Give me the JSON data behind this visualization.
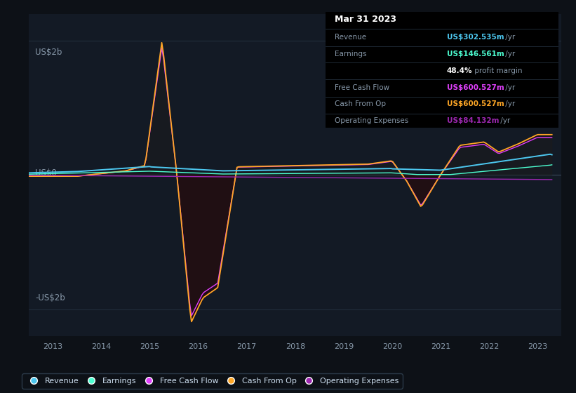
{
  "bg_color": "#0d1117",
  "plot_bg_color": "#131a25",
  "info_box": {
    "date": "Mar 31 2023",
    "rows": [
      {
        "label": "Revenue",
        "value": "US$302.535m",
        "value_color": "#4dc8f0",
        "suffix": " /yr"
      },
      {
        "label": "Earnings",
        "value": "US$146.561m",
        "value_color": "#4dffd2",
        "suffix": " /yr"
      },
      {
        "label": "",
        "value": "48.4%",
        "value_color": "#ffffff",
        "suffix": " profit margin"
      },
      {
        "label": "Free Cash Flow",
        "value": "US$600.527m",
        "value_color": "#e040fb",
        "suffix": " /yr"
      },
      {
        "label": "Cash From Op",
        "value": "US$600.527m",
        "value_color": "#ffa726",
        "suffix": " /yr"
      },
      {
        "label": "Operating Expenses",
        "value": "US$84.132m",
        "value_color": "#9c27b0",
        "suffix": " /yr"
      }
    ]
  },
  "ylabel_top": "US$2b",
  "ylabel_zero": "US$0",
  "ylabel_bottom": "-US$2b",
  "revenue_color": "#4dc8f0",
  "earnings_color": "#4dffd2",
  "free_cash_flow_color": "#e040fb",
  "cash_from_op_color": "#ffa726",
  "operating_expenses_color": "#9c27b0",
  "grid_color": "#2a3a4a",
  "zero_line_color": "#3a4a5a",
  "legend": [
    {
      "label": "Revenue",
      "color": "#4dc8f0"
    },
    {
      "label": "Earnings",
      "color": "#4dffd2"
    },
    {
      "label": "Free Cash Flow",
      "color": "#e040fb"
    },
    {
      "label": "Cash From Op",
      "color": "#ffa726"
    },
    {
      "label": "Operating Expenses",
      "color": "#9c27b0"
    }
  ]
}
